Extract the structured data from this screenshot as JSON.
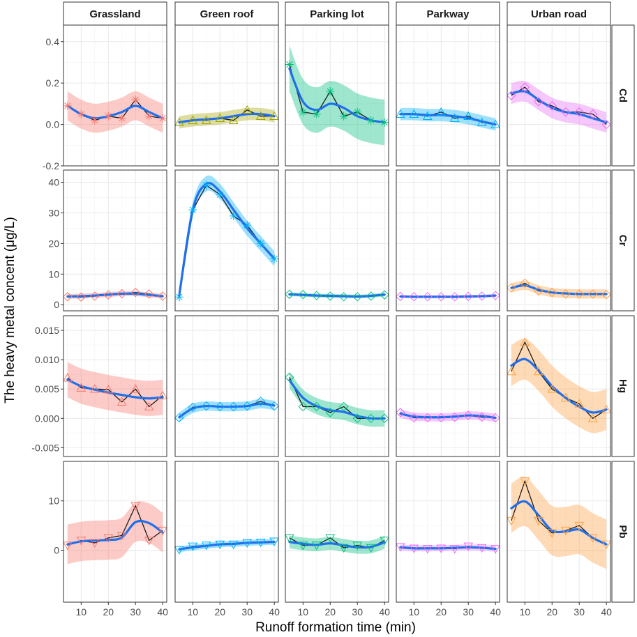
{
  "chart_data": {
    "type": "line",
    "title": "",
    "xlabel": "Runoff formation time (min)",
    "ylabel": "The heavy metal concent (μg/L)",
    "x": [
      5,
      10,
      15,
      20,
      25,
      30,
      35,
      40
    ],
    "xlim": [
      3.5,
      41.5
    ],
    "xticks": [
      10,
      20,
      30,
      40
    ],
    "columns": [
      "Grassland",
      "Green roof",
      "Parking lot",
      "Parkway",
      "Urban road"
    ],
    "rows": [
      {
        "name": "Cd",
        "ylim": [
          -0.2,
          0.48
        ],
        "yticks": [
          -0.2,
          0.0,
          0.2,
          0.4
        ],
        "ytick_labels": [
          "-0.2",
          "0.0",
          "0.2",
          "0.4"
        ],
        "panels": [
          {
            "column": "Grassland",
            "values": [
              0.09,
              0.05,
              0.02,
              0.04,
              0.03,
              0.12,
              0.04,
              0.03
            ],
            "smooth": [
              0.09,
              0.05,
              0.03,
              0.04,
              0.06,
              0.09,
              0.06,
              0.03
            ],
            "band": 0.07,
            "color": "#F8766D",
            "shape": "star"
          },
          {
            "column": "Green roof",
            "values": [
              0.01,
              0.02,
              0.02,
              0.03,
              0.02,
              0.07,
              0.04,
              0.04
            ],
            "smooth": [
              0.01,
              0.02,
              0.025,
              0.03,
              0.04,
              0.05,
              0.05,
              0.04
            ],
            "band": 0.03,
            "color": "#A3A500",
            "shape": "triangle"
          },
          {
            "column": "Parking lot",
            "values": [
              0.29,
              0.06,
              0.05,
              0.16,
              0.04,
              0.06,
              0.02,
              0.01
            ],
            "smooth": [
              0.27,
              0.11,
              0.07,
              0.1,
              0.08,
              0.04,
              0.02,
              0.01
            ],
            "band": 0.11,
            "color": "#00BF7D",
            "shape": "star"
          },
          {
            "column": "Parkway",
            "values": [
              0.05,
              0.05,
              0.04,
              0.06,
              0.03,
              0.04,
              0.01,
              0.0
            ],
            "smooth": [
              0.05,
              0.05,
              0.045,
              0.045,
              0.04,
              0.03,
              0.015,
              0.0
            ],
            "band": 0.03,
            "color": "#00B0F6",
            "shape": "triangle"
          },
          {
            "column": "Urban road",
            "values": [
              0.14,
              0.18,
              0.11,
              0.09,
              0.06,
              0.06,
              0.05,
              0.0
            ],
            "smooth": [
              0.15,
              0.16,
              0.12,
              0.08,
              0.06,
              0.05,
              0.03,
              0.01
            ],
            "band": 0.05,
            "color": "#E76BF3",
            "shape": "diamond"
          }
        ]
      },
      {
        "name": "Cr",
        "ylim": [
          -2,
          44
        ],
        "yticks": [
          0,
          10,
          20,
          30,
          40
        ],
        "ytick_labels": [
          "0",
          "10",
          "20",
          "30",
          "40"
        ],
        "panels": [
          {
            "column": "Grassland",
            "values": [
              2.6,
              2.5,
              2.8,
              3.2,
              3.6,
              4.0,
              3.5,
              2.8
            ],
            "smooth": [
              2.7,
              2.8,
              3.0,
              3.3,
              3.6,
              3.6,
              3.2,
              2.8
            ],
            "band": 0.8,
            "color": "#F8766D",
            "shape": "diamond"
          },
          {
            "column": "Green roof",
            "values": [
              2.5,
              31,
              39,
              36,
              29,
              26,
              20,
              15
            ],
            "smooth": [
              3,
              31,
              39.5,
              37,
              31,
              25,
              20,
              15
            ],
            "band": 2.5,
            "color": "#00B0F6",
            "shape": "star"
          },
          {
            "column": "Parking lot",
            "values": [
              3.4,
              3.3,
              3.0,
              2.8,
              2.6,
              2.6,
              2.8,
              3.2
            ],
            "smooth": [
              3.4,
              3.2,
              3.0,
              2.9,
              2.8,
              2.7,
              2.9,
              3.3
            ],
            "band": 0.6,
            "color": "#00BF7D",
            "shape": "diamond"
          },
          {
            "column": "Parkway",
            "values": [
              2.7,
              2.6,
              2.6,
              2.6,
              2.6,
              2.7,
              2.8,
              3.0
            ],
            "smooth": [
              2.7,
              2.6,
              2.6,
              2.6,
              2.6,
              2.7,
              2.8,
              3.0
            ],
            "band": 0.5,
            "color": "#E76BF3",
            "shape": "diamond"
          },
          {
            "column": "Urban road",
            "values": [
              5.5,
              7.0,
              4.5,
              4.0,
              3.5,
              3.5,
              3.5,
              3.3
            ],
            "smooth": [
              5.5,
              6.3,
              4.9,
              4.0,
              3.7,
              3.5,
              3.5,
              3.5
            ],
            "band": 1.5,
            "color": "#FF9F40",
            "shape": "diamond"
          }
        ]
      },
      {
        "name": "Hg",
        "ylim": [
          -0.0065,
          0.0175
        ],
        "yticks": [
          -0.005,
          0.0,
          0.005,
          0.01,
          0.015
        ],
        "ytick_labels": [
          "-0.005",
          "0.000",
          "0.005",
          "0.010",
          "0.015"
        ],
        "panels": [
          {
            "column": "Grassland",
            "values": [
              0.0069,
              0.0052,
              0.005,
              0.0049,
              0.0028,
              0.005,
              0.002,
              0.0039
            ],
            "smooth": [
              0.0066,
              0.0055,
              0.0049,
              0.0044,
              0.004,
              0.0036,
              0.0034,
              0.0036
            ],
            "band": 0.003,
            "color": "#F8766D",
            "shape": "triangle"
          },
          {
            "column": "Green roof",
            "values": [
              0.0001,
              0.0019,
              0.0021,
              0.002,
              0.002,
              0.0021,
              0.0029,
              0.0021
            ],
            "smooth": [
              0.0002,
              0.0017,
              0.0021,
              0.002,
              0.002,
              0.0021,
              0.0025,
              0.0022
            ],
            "band": 0.0008,
            "color": "#00B0F6",
            "shape": "diamond"
          },
          {
            "column": "Parking lot",
            "values": [
              0.007,
              0.002,
              0.002,
              0.001,
              0.002,
              0.0,
              0.0,
              0.0
            ],
            "smooth": [
              0.0065,
              0.0035,
              0.0021,
              0.0014,
              0.0011,
              0.0004,
              0.0,
              0.0
            ],
            "band": 0.0014,
            "color": "#00BF7D",
            "shape": "diamond"
          },
          {
            "column": "Parkway",
            "values": [
              0.001,
              0.0001,
              0.0001,
              0.0001,
              0.0002,
              0.0005,
              0.0002,
              0.0001
            ],
            "smooth": [
              0.0008,
              0.0003,
              0.0002,
              0.0002,
              0.0003,
              0.0005,
              0.0004,
              0.0001
            ],
            "band": 0.0007,
            "color": "#E76BF3",
            "shape": "diamond"
          },
          {
            "column": "Urban road",
            "values": [
              0.008,
              0.013,
              0.008,
              0.005,
              0.0035,
              0.0025,
              0.0,
              0.0015
            ],
            "smooth": [
              0.009,
              0.0101,
              0.0082,
              0.0055,
              0.0035,
              0.002,
              0.001,
              0.0015
            ],
            "band": 0.0035,
            "color": "#FF9F40",
            "shape": "triangle"
          }
        ]
      },
      {
        "name": "Pb",
        "ylim": [
          -10.5,
          18
        ],
        "yticks": [
          0,
          10
        ],
        "ytick_labels": [
          "0",
          "10"
        ],
        "panels": [
          {
            "column": "Grassland",
            "values": [
              1.0,
              2.0,
              1.5,
              2.5,
              3.0,
              9.0,
              2.0,
              4.0
            ],
            "smooth": [
              1.2,
              1.8,
              2.0,
              2.1,
              2.6,
              5.7,
              5.5,
              3.6
            ],
            "band": 4.0,
            "color": "#F8766D",
            "shape": "triangle-down"
          },
          {
            "column": "Green roof",
            "values": [
              0.1,
              0.8,
              1.0,
              1.2,
              1.2,
              1.5,
              1.6,
              1.8
            ],
            "smooth": [
              0.2,
              0.6,
              0.9,
              1.2,
              1.3,
              1.5,
              1.6,
              1.7
            ],
            "band": 0.6,
            "color": "#00B0F6",
            "shape": "triangle-down"
          },
          {
            "column": "Parking lot",
            "values": [
              2.5,
              1.0,
              1.0,
              2.5,
              0.5,
              1.0,
              0.5,
              2.0
            ],
            "smooth": [
              1.7,
              1.3,
              1.1,
              1.4,
              1.0,
              0.6,
              0.7,
              1.6
            ],
            "band": 1.3,
            "color": "#00BF7D",
            "shape": "triangle-down"
          },
          {
            "column": "Parkway",
            "values": [
              0.7,
              0.4,
              0.3,
              0.4,
              0.3,
              0.8,
              0.5,
              0.3
            ],
            "smooth": [
              0.6,
              0.4,
              0.4,
              0.4,
              0.5,
              0.6,
              0.5,
              0.3
            ],
            "band": 0.6,
            "color": "#E76BF3",
            "shape": "triangle-down"
          },
          {
            "column": "Urban road",
            "values": [
              6.0,
              14.0,
              6.0,
              3.5,
              4.0,
              5.0,
              2.5,
              1.2
            ],
            "smooth": [
              8.5,
              9.9,
              7.1,
              4.0,
              3.8,
              4.2,
              2.5,
              1.2
            ],
            "band": 5.0,
            "color": "#FF9F40",
            "shape": "triangle-down"
          }
        ]
      }
    ]
  }
}
